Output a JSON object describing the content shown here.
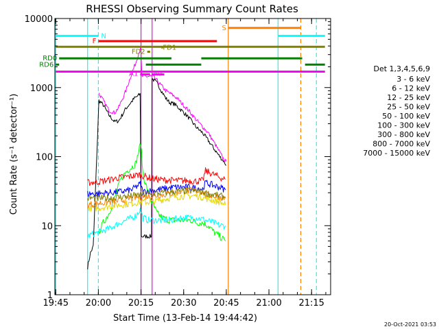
{
  "chart_data": {
    "type": "line",
    "title": "RHESSI Observing Summary Count Rates",
    "xlabel": "Start Time (13-Feb-14 19:44:42)",
    "ylabel": "Count Rate (s⁻¹ detector⁻¹)",
    "footer": "20-Oct-2021 03:53",
    "legend_title": "Det 1,3,4,5,6,9",
    "legend_position": "right",
    "x_unit": "minutes after 19:44:42",
    "xlim": [
      0,
      97
    ],
    "ylim": [
      1,
      10000
    ],
    "y_scale": "log",
    "x_ticks": [
      {
        "v": 0.3,
        "label": "19:45"
      },
      {
        "v": 15.3,
        "label": "20:00"
      },
      {
        "v": 30.3,
        "label": "20:15"
      },
      {
        "v": 45.3,
        "label": "20:30"
      },
      {
        "v": 60.3,
        "label": "20:45"
      },
      {
        "v": 75.3,
        "label": "21:00"
      },
      {
        "v": 90.3,
        "label": "21:15"
      }
    ],
    "y_ticks": [
      {
        "v": 1,
        "label": "1"
      },
      {
        "v": 10,
        "label": "10"
      },
      {
        "v": 100,
        "label": "100"
      },
      {
        "v": 1000,
        "label": "1000"
      },
      {
        "v": 10000,
        "label": "10000"
      }
    ],
    "series": [
      {
        "name": "3 - 6 keV",
        "color": "#000000",
        "points": [
          [
            11.5,
            2.5
          ],
          [
            12.5,
            4.0
          ],
          [
            13.5,
            5.0
          ],
          [
            15.5,
            650
          ],
          [
            17,
            560
          ],
          [
            19,
            400
          ],
          [
            21,
            320
          ],
          [
            22.5,
            330
          ],
          [
            25,
            500
          ],
          [
            28,
            700
          ],
          [
            30,
            800
          ],
          [
            30.4,
            7
          ],
          [
            33,
            7
          ],
          [
            34,
            7
          ],
          [
            34.2,
            1350
          ],
          [
            36,
            1150
          ],
          [
            39,
            700
          ],
          [
            40.5,
            600
          ],
          [
            42,
            580
          ],
          [
            45,
            450
          ],
          [
            47,
            370
          ],
          [
            50,
            260
          ],
          [
            52,
            220
          ],
          [
            54,
            170
          ],
          [
            56,
            130
          ],
          [
            58,
            100
          ],
          [
            59.5,
            85
          ],
          [
            60.3,
            75
          ]
        ]
      },
      {
        "name": "6 - 12 keV",
        "color": "#ff00ff",
        "points": [
          [
            15.5,
            820
          ],
          [
            17,
            650
          ],
          [
            19,
            470
          ],
          [
            21,
            430
          ],
          [
            22.5,
            520
          ],
          [
            25,
            900
          ],
          [
            27,
            1600
          ],
          [
            28.5,
            2300
          ],
          [
            29.5,
            3200
          ],
          [
            30.2,
            3800
          ],
          [
            30.6,
            1450
          ],
          [
            33.5,
            1450
          ],
          [
            34.5,
            1450
          ],
          [
            36,
            1250
          ],
          [
            39,
            900
          ],
          [
            41,
            800
          ],
          [
            43,
            700
          ],
          [
            45,
            570
          ],
          [
            47,
            470
          ],
          [
            50,
            330
          ],
          [
            52,
            270
          ],
          [
            54,
            220
          ],
          [
            56,
            160
          ],
          [
            58,
            115
          ],
          [
            59.5,
            90
          ],
          [
            60.3,
            85
          ]
        ]
      },
      {
        "name": "12 - 25 keV",
        "color": "#00ff00",
        "points": [
          [
            15.5,
            8
          ],
          [
            17,
            11
          ],
          [
            19,
            15
          ],
          [
            21,
            25
          ],
          [
            23,
            45
          ],
          [
            25,
            60
          ],
          [
            27,
            70
          ],
          [
            28.5,
            80
          ],
          [
            29.5,
            120
          ],
          [
            30.2,
            160
          ],
          [
            31,
            55
          ],
          [
            32.5,
            33
          ],
          [
            34,
            22
          ],
          [
            36,
            15
          ],
          [
            38,
            13
          ],
          [
            40,
            12
          ],
          [
            42,
            12
          ],
          [
            44,
            12
          ],
          [
            46,
            12
          ],
          [
            48,
            12
          ],
          [
            50,
            11
          ],
          [
            52,
            11
          ],
          [
            54,
            10
          ],
          [
            56,
            8
          ],
          [
            58,
            7
          ],
          [
            60,
            6
          ]
        ]
      },
      {
        "name": "25 - 50 keV",
        "color": "#00ffff",
        "points": [
          [
            11.5,
            7
          ],
          [
            13,
            7.5
          ],
          [
            15.5,
            8
          ],
          [
            17,
            8.5
          ],
          [
            19,
            9
          ],
          [
            21,
            10
          ],
          [
            23,
            11
          ],
          [
            25,
            12
          ],
          [
            27,
            13
          ],
          [
            28.5,
            14
          ],
          [
            30,
            17
          ],
          [
            31,
            13
          ],
          [
            33,
            12
          ],
          [
            35,
            12
          ],
          [
            38,
            12
          ],
          [
            41,
            12
          ],
          [
            44,
            13
          ],
          [
            47,
            13
          ],
          [
            50,
            13
          ],
          [
            53,
            12
          ],
          [
            56,
            11
          ],
          [
            58,
            10
          ],
          [
            60,
            10
          ]
        ]
      },
      {
        "name": "50 - 100 keV",
        "color": "#e5d700",
        "points": [
          [
            11.5,
            18
          ],
          [
            15,
            18
          ],
          [
            19,
            19
          ],
          [
            23,
            20
          ],
          [
            27,
            21
          ],
          [
            30,
            22
          ],
          [
            34,
            22
          ],
          [
            38,
            24
          ],
          [
            42,
            26
          ],
          [
            46,
            27
          ],
          [
            50,
            27
          ],
          [
            53,
            25
          ],
          [
            56,
            23
          ],
          [
            58,
            22
          ],
          [
            60,
            20
          ]
        ]
      },
      {
        "name": "100 - 300 keV",
        "color": "#ff0000",
        "points": [
          [
            11.5,
            42
          ],
          [
            15,
            43
          ],
          [
            19,
            46
          ],
          [
            23,
            50
          ],
          [
            27,
            52
          ],
          [
            30,
            55
          ],
          [
            31,
            53
          ],
          [
            34,
            48
          ],
          [
            38,
            46
          ],
          [
            42,
            45
          ],
          [
            46,
            45
          ],
          [
            50,
            44
          ],
          [
            52,
            45
          ],
          [
            53,
            62
          ],
          [
            56,
            55
          ],
          [
            58,
            50
          ],
          [
            60,
            47
          ]
        ]
      },
      {
        "name": "300 - 800 keV",
        "color": "#0000ff",
        "points": [
          [
            11.5,
            29
          ],
          [
            15,
            29
          ],
          [
            19,
            30
          ],
          [
            23,
            31
          ],
          [
            27,
            33
          ],
          [
            30,
            40
          ],
          [
            31,
            31
          ],
          [
            34,
            32
          ],
          [
            38,
            34
          ],
          [
            42,
            36
          ],
          [
            46,
            36
          ],
          [
            50,
            35
          ],
          [
            52,
            34
          ],
          [
            53,
            42
          ],
          [
            56,
            38
          ],
          [
            58,
            36
          ],
          [
            60,
            33
          ]
        ]
      },
      {
        "name": "800 - 7000 keV",
        "color": "#ff8000",
        "points": [
          [
            11.5,
            20
          ],
          [
            15,
            21
          ],
          [
            19,
            22
          ],
          [
            23,
            23
          ],
          [
            27,
            25
          ],
          [
            30,
            26
          ],
          [
            34,
            27
          ],
          [
            38,
            28
          ],
          [
            42,
            30
          ],
          [
            46,
            32
          ],
          [
            50,
            32
          ],
          [
            52,
            31
          ],
          [
            53,
            28
          ],
          [
            56,
            27
          ],
          [
            58,
            26
          ],
          [
            60,
            25
          ]
        ]
      },
      {
        "name": "7000 - 15000 keV",
        "color": "#808000",
        "points": [
          [
            11.5,
            25
          ],
          [
            15,
            25
          ],
          [
            19,
            25
          ],
          [
            23,
            26
          ],
          [
            27,
            27
          ],
          [
            30,
            28
          ],
          [
            34,
            29
          ],
          [
            38,
            30
          ],
          [
            42,
            31
          ],
          [
            46,
            32
          ],
          [
            50,
            32
          ],
          [
            52,
            31
          ],
          [
            54,
            29
          ],
          [
            56,
            28
          ],
          [
            58,
            27
          ],
          [
            60,
            26
          ]
        ]
      }
    ],
    "flag_bars": [
      {
        "label": "N",
        "color": "#00ffff",
        "y": 5600,
        "segments": [
          [
            0.3,
            15.3
          ],
          [
            78.5,
            95
          ]
        ]
      },
      {
        "label": "S",
        "color": "#ff8000",
        "y": 7300,
        "segments": [
          [
            61,
            86.5
          ]
        ]
      },
      {
        "label": "F",
        "color": "#ff0000",
        "y": 4700,
        "segments": [
          [
            15.3,
            57
          ]
        ]
      },
      {
        "label": "",
        "color": "#808000",
        "y": 3900,
        "segments": [
          [
            0.3,
            95
          ]
        ]
      },
      {
        "label": "FD1",
        "color": "#808000",
        "y": 3800,
        "segments": [
          [
            37.5,
            38
          ]
        ]
      },
      {
        "label": "FD2",
        "color": "#808000",
        "y": 3300,
        "segments": [
          [
            32.5,
            33.5
          ]
        ]
      },
      {
        "label": "RD0",
        "color": "#008000",
        "y": 2650,
        "segments": [
          [
            1.5,
            41
          ],
          [
            51.5,
            87
          ]
        ]
      },
      {
        "label": "RD6",
        "color": "#008000",
        "y": 2150,
        "segments": [
          [
            0.3,
            1.5
          ],
          [
            32,
            51.5
          ],
          [
            88,
            95
          ]
        ]
      },
      {
        "label": "",
        "color": "#ff00ff",
        "y": 1700,
        "segments": [
          [
            0.3,
            95
          ]
        ]
      },
      {
        "label": "A1",
        "color": "#ff00ff",
        "y": 1550,
        "segments": [
          [
            30,
            33.5
          ]
        ]
      },
      {
        "label": "A0",
        "color": "#ff00ff",
        "y": 1550,
        "segments": [
          [
            34,
            38.5
          ]
        ]
      }
    ],
    "vlines": [
      {
        "x": 0.3,
        "color": "#00ffff",
        "style": "solid"
      },
      {
        "x": 11.5,
        "color": "#00ffff",
        "style": "solid"
      },
      {
        "x": 15.3,
        "color": "#00ffff",
        "style": "dashed"
      },
      {
        "x": 30.3,
        "color": "#ff00ff",
        "style": "solid"
      },
      {
        "x": 34.2,
        "color": "#ff00ff",
        "style": "solid"
      },
      {
        "x": 61,
        "color": "#ff8000",
        "style": "solid"
      },
      {
        "x": 78.5,
        "color": "#00ffff",
        "style": "solid"
      },
      {
        "x": 86.5,
        "color": "#ff8000",
        "style": "dashed"
      },
      {
        "x": 92,
        "color": "#00ffff",
        "style": "dashed"
      }
    ]
  }
}
